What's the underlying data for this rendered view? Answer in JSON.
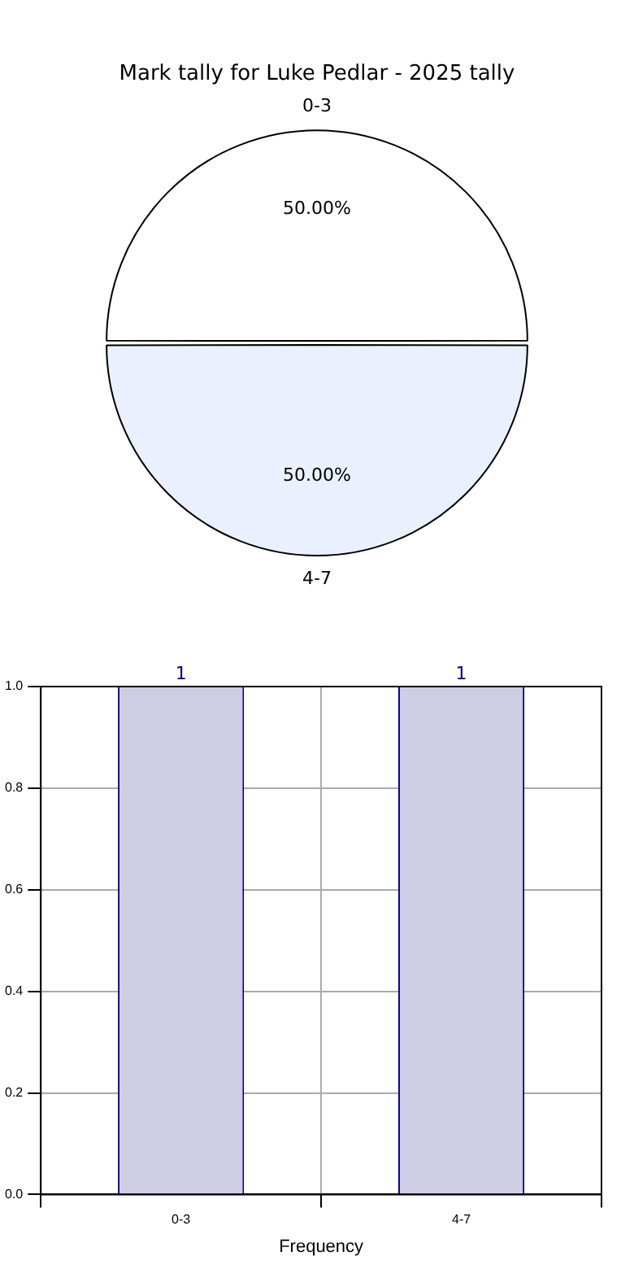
{
  "chart_data": [
    {
      "type": "pie",
      "title": "Mark tally for Luke Pedlar - 2025 tally",
      "categories": [
        "0-3",
        "4-7"
      ],
      "values": [
        50,
        50
      ],
      "colors": [
        "#ffffff",
        "#eaf0fd"
      ],
      "value_labels": [
        "50.00%",
        "50.00%"
      ],
      "legend": false
    },
    {
      "type": "bar",
      "categories": [
        "0-3",
        "4-7"
      ],
      "values": [
        1,
        1
      ],
      "color": "#cdcde5",
      "xlabel": "Frequency",
      "ylim": [
        0,
        1
      ],
      "yticks": [
        {
          "value": 0,
          "label": "0.0"
        },
        {
          "value": 0.2,
          "label": "0.2"
        },
        {
          "value": 0.4,
          "label": "0.4"
        },
        {
          "value": 0.6,
          "label": "0.6"
        },
        {
          "value": 0.8,
          "label": "0.8"
        },
        {
          "value": 1,
          "label": "1.0"
        }
      ],
      "grid": true,
      "data_labels": true,
      "legend": false
    }
  ]
}
